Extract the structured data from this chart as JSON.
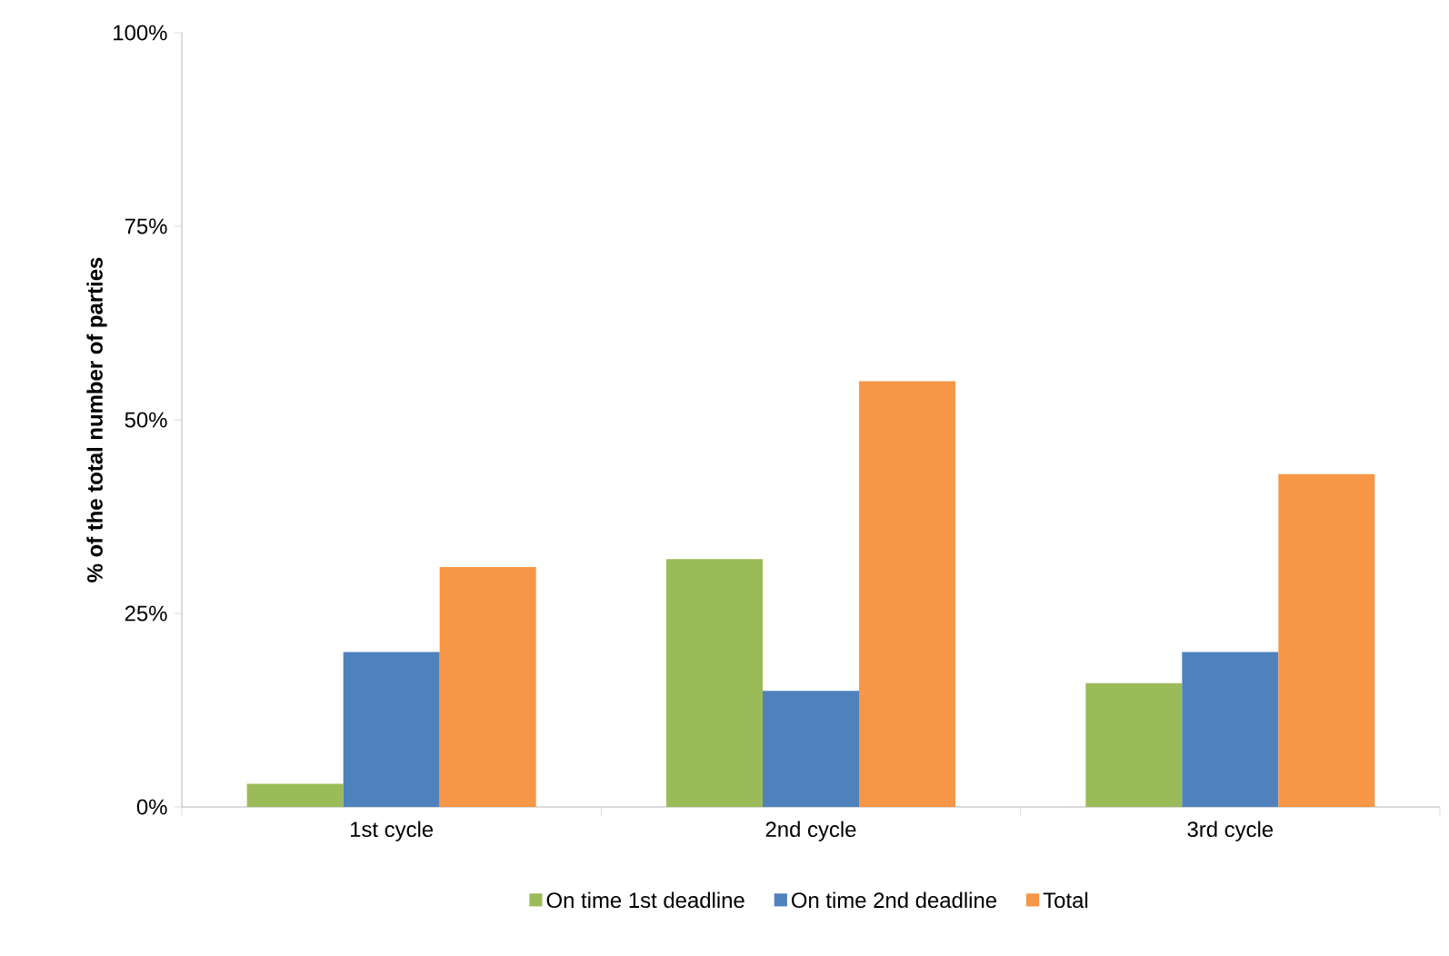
{
  "chart_data": {
    "type": "bar",
    "ylabel": "% of the total number of parties",
    "categories": [
      "1st cycle",
      "2nd cycle",
      "3rd cycle"
    ],
    "series": [
      {
        "name": "On time 1st deadline",
        "color": "#9bbb59",
        "values": [
          3,
          32,
          16
        ]
      },
      {
        "name": "On time 2nd deadline",
        "color": "#4f81bd",
        "values": [
          20,
          15,
          20
        ]
      },
      {
        "name": "Total",
        "color": "#f79646",
        "values": [
          31,
          55,
          43
        ]
      }
    ],
    "ylim": [
      0,
      100
    ],
    "yticks": [
      {
        "value": 0,
        "label": "0%"
      },
      {
        "value": 25,
        "label": "25%"
      },
      {
        "value": 50,
        "label": "50%"
      },
      {
        "value": 75,
        "label": "75%"
      },
      {
        "value": 100,
        "label": "100%"
      }
    ],
    "grid": false,
    "legend": "bottom"
  }
}
